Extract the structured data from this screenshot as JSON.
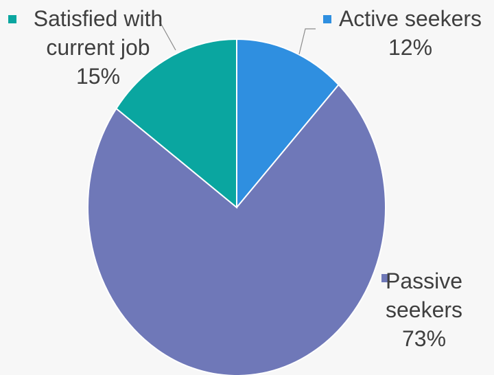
{
  "chart_data": {
    "type": "pie",
    "title": "",
    "slices": [
      {
        "name": "Active seekers",
        "label_lines": [
          "Active seekers"
        ],
        "value": 12,
        "value_label": "12%",
        "color": "#2f8fe0"
      },
      {
        "name": "Passive seekers",
        "label_lines": [
          "Passive",
          "seekers"
        ],
        "value": 73,
        "value_label": "73%",
        "color": "#6f78b8"
      },
      {
        "name": "Satisfied with current job",
        "label_lines": [
          "Satisfied with",
          "current job"
        ],
        "value": 15,
        "value_label": "15%",
        "color": "#0aa6a0"
      }
    ],
    "start_direction": "top",
    "direction": "clockwise",
    "legend": "data-labels-outside-with-markers"
  }
}
